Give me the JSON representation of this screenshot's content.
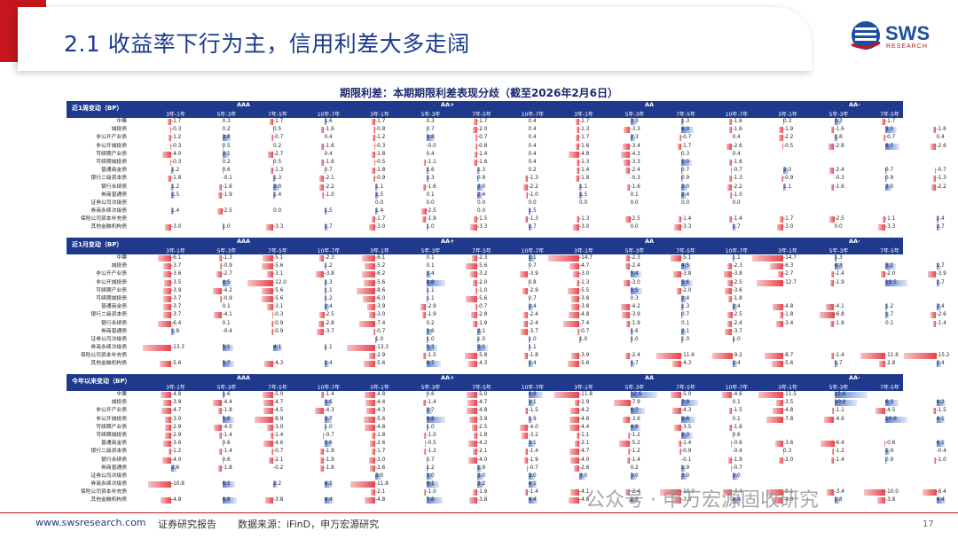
{
  "header": {
    "title": "2.1 收益率下行为主，信用利差大多走阔",
    "logo_text": "SWS",
    "logo_sub": "RESEARCH"
  },
  "table_title": "期限利差：本期期限利差表现分歧（截至2026年2月6日）",
  "groups": [
    "AAA",
    "AA+",
    "AA",
    "AA-"
  ],
  "columns": [
    "3年-1年",
    "5年-3年",
    "7年-5年",
    "10年-7年"
  ],
  "rows": [
    "中票",
    "城投债",
    "非公开产业债",
    "非公开城投债",
    "可续期产业债",
    "可续期城投债",
    "普通商金债",
    "银行二级资本债",
    "银行永续债",
    "券商普通债",
    "证券公司次级债",
    "券商永续次级债",
    "保险公司资本补充债",
    "其他金融机构债"
  ],
  "sections": [
    {
      "label": "近1周变动（BP）",
      "values": [
        [
          "-1.7",
          "0.3",
          "-1.7",
          "1.6",
          "-1.7",
          "0.3",
          "-1.7",
          "0.4",
          "-1.7",
          "3.3",
          "1.3",
          "-1.6",
          "0.3",
          "3.3",
          "-1.7",
          ""
        ],
        [
          "-0.3",
          "0.2",
          "0.5",
          "-1.6",
          "-0.8",
          "0.7",
          "-2.0",
          "0.4",
          "-1.3",
          "-3.3",
          "6.0",
          "-1.6",
          "-1.9",
          "-1.6",
          "5.5",
          "-1.6"
        ],
        [
          "-1.2",
          "3.8",
          "-0.7",
          "0.4",
          "-1.2",
          "3.8",
          "-0.7",
          "0.4",
          "-1.7",
          "2.3",
          "-0.7",
          "0.4",
          "-2.2",
          "1.8",
          "-0.7",
          "0.4"
        ],
        [
          "-0.3",
          "0.5",
          "0.2",
          "-1.6",
          "-0.3",
          "-0.0",
          "-0.8",
          "0.4",
          "-1.6",
          "-3.4",
          "-1.7",
          "-2.6",
          "-0.5",
          "-2.8",
          "6.7",
          "-2.6"
        ],
        [
          "-4.0",
          "3.1",
          "-2.7",
          "0.4",
          "-1.8",
          "0.4",
          "-1.4",
          "0.4",
          "-4.8",
          "-4.3",
          "0.3",
          "0.4",
          "",
          "",
          "",
          ""
        ],
        [
          "-0.3",
          "0.2",
          "0.5",
          "-1.6",
          "-0.5",
          "-1.1",
          "-1.6",
          "0.4",
          "-1.3",
          "-3.3",
          "5.0",
          "-1.6",
          "",
          "",
          "",
          ""
        ],
        [
          "1.2",
          "0.6",
          "-1.3",
          "0.7",
          "-1.8",
          "1.6",
          "1.3",
          "0.2",
          "-1.4",
          "-2.4",
          "0.7",
          "-0.7",
          "2.3",
          "-2.4",
          "0.7",
          "-0.7"
        ],
        [
          "-1.8",
          "-0.1",
          "1.3",
          "-2.1",
          "-0.9",
          "1.3",
          "0.9",
          "-1.3",
          "-1.8",
          "-0.3",
          "0.9",
          "-1.3",
          "-0.9",
          "-0.3",
          "0.9",
          "-1.3"
        ],
        [
          "1.2",
          "-1.6",
          "3.0",
          "-2.2",
          "1.1",
          "-1.6",
          "3.0",
          "-2.2",
          "1.1",
          "-1.6",
          "3.0",
          "-2.2",
          "1.1",
          "-1.6",
          "3.0",
          "-2.2"
        ],
        [
          "1.5",
          "-1.9",
          "1.4",
          "-1.0",
          "1.5",
          "0.1",
          "2.4",
          "-1.0",
          "1.5",
          "0.1",
          "2.4",
          "-1.0",
          "",
          "",
          "",
          ""
        ],
        [
          "",
          "",
          "",
          "",
          "0.0",
          "0.0",
          "0.0",
          "0.0",
          "0.0",
          "0.0",
          "0.0",
          "0.0",
          "",
          "",
          "",
          ""
        ],
        [
          "1.4",
          "-2.5",
          "0.0",
          "1.5",
          "1.4",
          "-2.5",
          "0.0",
          "1.5",
          "",
          "",
          "",
          "",
          "",
          "",
          "",
          ""
        ],
        [
          "",
          "",
          "",
          "",
          "-1.7",
          "-1.9",
          "-1.5",
          "-1.3",
          "-1.3",
          "-2.5",
          "-1.4",
          "-1.4",
          "-1.7",
          "-2.5",
          "-1.1",
          "1.4"
        ],
        [
          "-3.0",
          "1.0",
          "-3.3",
          "1.7",
          "-3.0",
          "1.0",
          "-3.3",
          "1.7",
          "-3.0",
          "0.0",
          "-3.3",
          "1.7",
          "-3.0",
          "0.0",
          "-3.3",
          "1.7"
        ]
      ]
    },
    {
      "label": "近1月变动（BP）",
      "values": [
        [
          "-6.1",
          "-1.3",
          "-5.1",
          "-2.3",
          "-6.1",
          "0.1",
          "-2.3",
          "3.1",
          "-14.7",
          "-2.3",
          "-5.1",
          "1.1",
          "-14.7",
          "1.3",
          "",
          ""
        ],
        [
          "-3.7",
          "-0.9",
          "-5.6",
          "1.2",
          "-5.2",
          "0.1",
          "-5.6",
          "0.7",
          "-4.7",
          "-2.4",
          "4.5",
          "-2.3",
          "-6.3",
          "4.3",
          "5.2",
          "1.7"
        ],
        [
          "-3.6",
          "-2.7",
          "-3.1",
          "-3.8",
          "-6.2",
          "2.4",
          "-3.2",
          "-3.9",
          "-3.0",
          "5.4",
          "-3.8",
          "-3.8",
          "-2.7",
          "-1.4",
          "-2.0",
          "-3.9"
        ],
        [
          "-3.5",
          "4.5",
          "-12.0",
          "1.3",
          "-5.6",
          "8.8",
          "-2.0",
          "0.8",
          "-1.3",
          "-3.0",
          "5.6",
          "-2.5",
          "-12.7",
          "-1.9",
          "10.5",
          "1.7"
        ],
        [
          "-3.9",
          "-4.2",
          "-5.6",
          "1.1",
          "-8.6",
          "1.1",
          "-1.0",
          "-2.9",
          "-5.5",
          "5.5",
          "-2.0",
          "-3.6",
          "",
          "",
          "",
          ""
        ],
        [
          "-3.7",
          "-0.9",
          "-5.6",
          "1.2",
          "-6.0",
          "1.1",
          "-5.6",
          "0.7",
          "-3.8",
          "0.3",
          "2.4",
          "-1.8",
          "",
          "",
          "",
          ""
        ],
        [
          "-3.7",
          "0.1",
          "-3.1",
          "2.4",
          "-3.9",
          "-2.9",
          "-0.7",
          "2.4",
          "-3.8",
          "-4.2",
          "1.3",
          "2.4",
          "-4.8",
          "-4.1",
          "1.2",
          "2.4"
        ],
        [
          "-3.7",
          "-4.1",
          "-0.3",
          "-2.5",
          "-3.0",
          "-1.9",
          "-2.8",
          "-2.4",
          "-4.8",
          "-3.9",
          "0.7",
          "-2.5",
          "-1.8",
          "-6.8",
          "1.7",
          "-2.6"
        ],
        [
          "-6.4",
          "0.1",
          "-0.9",
          "-2.8",
          "-7.4",
          "0.2",
          "-1.9",
          "-2.4",
          "-7.4",
          "-1.9",
          "0.1",
          "-2.4",
          "-3.4",
          "-1.9",
          "0.1",
          "-1.4"
        ],
        [
          "1.8",
          "-0.4",
          "-0.9",
          "-3.7",
          "-0.7",
          "2.6",
          "2.1",
          "-3.7",
          "-0.7",
          "1.6",
          "2.1",
          "-3.7",
          "",
          "",
          "",
          ""
        ],
        [
          "",
          "",
          "",
          "",
          "1.0",
          "1.0",
          "1.0",
          "1.0",
          "1.0",
          "1.0",
          "1.0",
          "1.0",
          "",
          "",
          "",
          ""
        ],
        [
          "-13.3",
          "5.1",
          "4.1",
          "1.1",
          "-13.3",
          "5.3",
          "5.1",
          "1.1",
          "",
          "",
          "",
          "",
          "",
          "",
          "",
          ""
        ],
        [
          "",
          "",
          "",
          "",
          "-2.9",
          "-1.5",
          "-5.8",
          "-1.8",
          "-3.9",
          "-2.4",
          "-11.6",
          "-9.2",
          "-8.7",
          "-1.4",
          "-11.6",
          "-15.2"
        ],
        [
          "-5.6",
          "5.7",
          "-4.3",
          "2.4",
          "-5.6",
          "6.7",
          "-4.3",
          "2.4",
          "-5.6",
          "1.7",
          "-4.3",
          "2.4",
          "-5.6",
          "1.7",
          "-2.8",
          "2.4"
        ]
      ]
    },
    {
      "label": "今年以来变动（BP）",
      "values": [
        [
          "-4.8",
          "1.6",
          "-5.0",
          "-1.4",
          "-4.8",
          "0.6",
          "-5.0",
          "6.8",
          "-11.8",
          "12.6",
          "-5.0",
          "-4.6",
          "-11.5",
          "15.6",
          "",
          ""
        ],
        [
          "-3.9",
          "-4.4",
          "-4.7",
          "3.6",
          "-4.4",
          "-1.4",
          "-4.7",
          "3.1",
          "-1.9",
          "-7.9",
          "7.9",
          "0.1",
          "-3.5",
          "10.8",
          "6.3",
          "4.2"
        ],
        [
          "-4.7",
          "-1.8",
          "-4.5",
          "-4.3",
          "-4.3",
          "2.7",
          "-4.8",
          "-1.5",
          "-4.2",
          "6.7",
          "-4.3",
          "-1.5",
          "-4.8",
          "-1.1",
          "-4.5",
          "-1.5"
        ],
        [
          "-3.0",
          "5.6",
          "-8.9",
          "3.7",
          "-5.6",
          "8.8",
          "-3.9",
          "1.9",
          "-4.6",
          "-3.6",
          "6.6",
          "0.1",
          "-7.8",
          "-4.9",
          "10.6",
          "4.1"
        ],
        [
          "-2.9",
          "-4.0",
          "-3.0",
          "1.0",
          "-4.8",
          "1.0",
          "-2.5",
          "-4.0",
          "-4.4",
          "4.8",
          "-3.5",
          "-1.6",
          "",
          "",
          "",
          ""
        ],
        [
          "-2.9",
          "-1.4",
          "-1.4",
          "-0.7",
          "-1.8",
          "-1.0",
          "-1.8",
          "-3.2",
          "-1.1",
          "-1.2",
          "5.3",
          "0.6",
          "",
          "",
          "",
          ""
        ],
        [
          "-3.6",
          "0.6",
          "-4.6",
          "3.6",
          "-2.6",
          "-0.5",
          "-4.2",
          "3.1",
          "-2.1",
          "-5.2",
          "-1.4",
          "-0.6",
          "-3.6",
          "-6.4",
          "-0.6",
          "4.1"
        ],
        [
          "-1.2",
          "-1.4",
          "-0.7",
          "-1.8",
          "-1.7",
          "-1.2",
          "-2.1",
          "-1.4",
          "-4.7",
          "-1.2",
          "-0.9",
          "-0.4",
          "0.3",
          "-1.2",
          "1.9",
          "-0.4"
        ],
        [
          "-4.0",
          "0.6",
          "-2.1",
          "-1.9",
          "-3.0",
          "0.7",
          "-4.0",
          "-1.9",
          "-4.0",
          "-1.4",
          "-0.1",
          "-1.9",
          "-2.0",
          "-1.4",
          "0.9",
          "-1.0"
        ],
        [
          "2.6",
          "-1.8",
          "-0.2",
          "-1.8",
          "-2.6",
          "1.2",
          "1.9",
          "-0.7",
          "-2.6",
          "0.2",
          "1.9",
          "-0.7",
          "",
          "",
          "",
          ""
        ],
        [
          "",
          "",
          "",
          "",
          "3.0",
          "3.0",
          "3.0",
          "3.0",
          "3.0",
          "3.0",
          "3.0",
          "3.0",
          "",
          "",
          "",
          ""
        ],
        [
          "-10.8",
          "6.1",
          "2.2",
          "4.1",
          "-11.8",
          "6.1",
          "3.2",
          "4.1",
          "",
          "",
          "",
          "",
          "",
          "",
          "",
          ""
        ],
        [
          "",
          "",
          "",
          "",
          "-2.1",
          "-1.0",
          "-1.9",
          "-1.4",
          "-4.1",
          "-2.4",
          "-10.0",
          "-4.4",
          "-8.1",
          "-3.4",
          "-10.0",
          "-6.4"
        ],
        [
          "-4.8",
          "6.8",
          "-3.8",
          "4.4",
          "-4.8",
          "7.8",
          "-3.8",
          "4.4",
          "-4.8",
          "2.8",
          "-3.8",
          "4.4",
          "-4.8",
          "2.8",
          "-3.8",
          "4.4"
        ]
      ]
    }
  ],
  "footer": {
    "url": "www.swsresearch.com",
    "report": "证券研究报告",
    "source": "数据来源：iFinD，申万宏源研究",
    "page": "17"
  },
  "watermark": "公众号 · 申万宏源固收研究",
  "colors": {
    "brand_red": "#c4161c",
    "brand_blue": "#1f3a8c",
    "neg_bar": "#e8424a",
    "pos_bar": "#5b7fd6"
  }
}
